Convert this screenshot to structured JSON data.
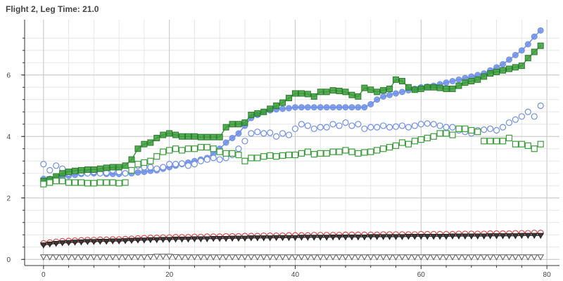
{
  "chart_data": {
    "type": "scatter",
    "title": "Flight 2, Leg Time: 21.0",
    "xlabel": "",
    "ylabel": "",
    "xlim": [
      -3,
      82
    ],
    "ylim": [
      -0.2,
      7.8
    ],
    "xticks": [
      0,
      20,
      40,
      60,
      80
    ],
    "yticks": [
      0,
      2,
      4,
      6
    ],
    "grid": true,
    "legend": "none",
    "series": [
      {
        "marker": "circle-filled",
        "color": "#6e8fe6",
        "line": true,
        "x": [
          0,
          1,
          2,
          3,
          4,
          5,
          6,
          7,
          8,
          9,
          10,
          11,
          12,
          13,
          14,
          15,
          16,
          17,
          18,
          19,
          20,
          21,
          22,
          23,
          24,
          25,
          26,
          27,
          28,
          29,
          30,
          31,
          32,
          33,
          34,
          35,
          36,
          37,
          38,
          39,
          40,
          41,
          42,
          43,
          44,
          45,
          46,
          47,
          48,
          49,
          50,
          51,
          52,
          53,
          54,
          55,
          56,
          57,
          58,
          59,
          60,
          61,
          62,
          63,
          64,
          65,
          66,
          67,
          68,
          69,
          70,
          71,
          72,
          73,
          74,
          75,
          76,
          77,
          78,
          79
        ],
        "values": [
          2.62,
          2.62,
          2.65,
          2.7,
          2.72,
          2.75,
          2.78,
          2.8,
          2.8,
          2.8,
          2.78,
          2.78,
          2.78,
          2.8,
          2.8,
          2.83,
          2.85,
          2.88,
          2.9,
          2.95,
          3.0,
          3.05,
          3.1,
          3.15,
          3.2,
          3.25,
          3.3,
          3.45,
          3.6,
          3.8,
          3.95,
          4.1,
          4.35,
          4.6,
          4.7,
          4.8,
          4.85,
          4.88,
          4.9,
          4.92,
          4.95,
          4.95,
          4.95,
          4.95,
          4.95,
          4.95,
          4.95,
          4.95,
          4.95,
          4.95,
          4.95,
          4.95,
          5.05,
          5.2,
          5.3,
          5.35,
          5.4,
          5.45,
          5.5,
          5.55,
          5.6,
          5.62,
          5.65,
          5.7,
          5.75,
          5.8,
          5.85,
          5.9,
          5.95,
          6.0,
          6.05,
          6.15,
          6.25,
          6.35,
          6.5,
          6.65,
          6.8,
          7.0,
          7.25,
          7.45
        ]
      },
      {
        "marker": "circle-open",
        "color": "#6e8fe6",
        "line": false,
        "x": [
          0,
          1,
          2,
          3,
          4,
          5,
          6,
          7,
          8,
          9,
          10,
          11,
          12,
          13,
          14,
          15,
          16,
          17,
          18,
          19,
          20,
          21,
          22,
          23,
          24,
          25,
          26,
          27,
          28,
          29,
          30,
          31,
          32,
          33,
          34,
          35,
          36,
          37,
          38,
          39,
          40,
          41,
          42,
          43,
          44,
          45,
          46,
          47,
          48,
          49,
          50,
          51,
          52,
          53,
          54,
          55,
          56,
          57,
          58,
          59,
          60,
          61,
          62,
          63,
          64,
          65,
          66,
          67,
          68,
          69,
          70,
          71,
          72,
          73,
          74,
          75,
          76,
          77,
          78,
          79
        ],
        "values": [
          3.1,
          2.9,
          3.05,
          2.95,
          2.8,
          2.85,
          2.82,
          2.8,
          2.85,
          2.8,
          2.82,
          2.9,
          2.85,
          2.8,
          2.9,
          3.05,
          3.0,
          3.0,
          2.95,
          3.0,
          3.1,
          3.1,
          3.12,
          3.05,
          3.1,
          3.2,
          3.25,
          3.3,
          3.25,
          3.3,
          3.4,
          3.6,
          3.85,
          4.1,
          4.15,
          4.1,
          4.12,
          4.0,
          4.1,
          4.05,
          4.25,
          4.4,
          4.35,
          4.25,
          4.3,
          4.3,
          4.4,
          4.35,
          4.45,
          4.35,
          4.4,
          4.25,
          4.3,
          4.3,
          4.35,
          4.3,
          4.32,
          4.35,
          4.3,
          4.35,
          4.4,
          4.42,
          4.4,
          4.35,
          4.3,
          4.3,
          4.2,
          4.15,
          4.1,
          4.2,
          4.22,
          4.25,
          4.2,
          4.3,
          4.45,
          4.55,
          4.65,
          4.8,
          4.65,
          5.0
        ]
      },
      {
        "marker": "square-filled",
        "color": "#3a9e3a",
        "line": true,
        "x": [
          0,
          1,
          2,
          3,
          4,
          5,
          6,
          7,
          8,
          9,
          10,
          11,
          12,
          13,
          14,
          15,
          16,
          17,
          18,
          19,
          20,
          21,
          22,
          23,
          24,
          25,
          26,
          27,
          28,
          29,
          30,
          31,
          32,
          33,
          34,
          35,
          36,
          37,
          38,
          39,
          40,
          41,
          42,
          43,
          44,
          45,
          46,
          47,
          48,
          49,
          50,
          51,
          52,
          53,
          54,
          55,
          56,
          57,
          58,
          59,
          60,
          61,
          62,
          63,
          64,
          65,
          66,
          67,
          68,
          69,
          70,
          71,
          72,
          73,
          74,
          75,
          76,
          77,
          78,
          79
        ],
        "values": [
          2.55,
          2.6,
          2.7,
          2.8,
          2.85,
          2.88,
          2.9,
          2.92,
          2.92,
          2.95,
          2.98,
          3.0,
          3.0,
          3.05,
          3.25,
          3.6,
          3.75,
          3.8,
          3.95,
          4.05,
          4.1,
          4.05,
          4.0,
          4.0,
          4.0,
          3.98,
          3.98,
          3.98,
          3.98,
          4.3,
          4.4,
          4.4,
          4.45,
          4.7,
          4.75,
          4.8,
          4.9,
          5.0,
          5.1,
          5.25,
          5.4,
          5.4,
          5.38,
          5.3,
          5.45,
          5.45,
          5.5,
          5.48,
          5.45,
          5.35,
          5.3,
          5.58,
          5.52,
          5.45,
          5.5,
          5.55,
          5.85,
          5.8,
          5.6,
          5.52,
          5.55,
          5.6,
          5.6,
          5.58,
          5.55,
          5.55,
          5.65,
          5.75,
          5.8,
          5.85,
          5.95,
          6.05,
          6.1,
          6.15,
          6.2,
          6.25,
          6.3,
          6.55,
          6.75,
          6.95
        ]
      },
      {
        "marker": "square-open",
        "color": "#3a9e3a",
        "line": false,
        "x": [
          0,
          1,
          2,
          3,
          4,
          5,
          6,
          7,
          8,
          9,
          10,
          11,
          12,
          13,
          14,
          15,
          16,
          17,
          18,
          19,
          20,
          21,
          22,
          23,
          24,
          25,
          26,
          27,
          28,
          29,
          30,
          31,
          32,
          33,
          34,
          35,
          36,
          37,
          38,
          39,
          40,
          41,
          42,
          43,
          44,
          45,
          46,
          47,
          48,
          49,
          50,
          51,
          52,
          53,
          54,
          55,
          56,
          57,
          58,
          59,
          60,
          61,
          62,
          63,
          64,
          65,
          66,
          67,
          68,
          69,
          70,
          71,
          72,
          73,
          74,
          75,
          76,
          77,
          78,
          79
        ],
        "values": [
          2.45,
          2.5,
          2.55,
          2.55,
          2.5,
          2.5,
          2.5,
          2.48,
          2.48,
          2.5,
          2.5,
          2.5,
          2.48,
          2.5,
          2.9,
          3.1,
          3.15,
          3.2,
          3.35,
          3.5,
          3.55,
          3.6,
          3.55,
          3.6,
          3.6,
          3.65,
          3.65,
          3.6,
          3.5,
          3.45,
          3.45,
          3.4,
          3.2,
          3.3,
          3.3,
          3.35,
          3.38,
          3.35,
          3.38,
          3.4,
          3.4,
          3.45,
          3.5,
          3.42,
          3.45,
          3.45,
          3.5,
          3.5,
          3.55,
          3.5,
          3.45,
          3.48,
          3.5,
          3.55,
          3.6,
          3.65,
          3.7,
          3.8,
          3.75,
          3.85,
          3.9,
          3.95,
          4.0,
          4.1,
          4.1,
          4.05,
          4.25,
          4.25,
          4.2,
          4.15,
          3.85,
          3.85,
          3.85,
          3.85,
          3.95,
          3.75,
          3.75,
          3.7,
          3.6,
          3.75
        ]
      },
      {
        "marker": "circle-open",
        "color": "#d94a4a",
        "line": false,
        "x": [
          0,
          1,
          2,
          3,
          4,
          5,
          6,
          7,
          8,
          9,
          10,
          11,
          12,
          13,
          14,
          15,
          16,
          17,
          18,
          19,
          20,
          21,
          22,
          23,
          24,
          25,
          26,
          27,
          28,
          29,
          30,
          31,
          32,
          33,
          34,
          35,
          36,
          37,
          38,
          39,
          40,
          41,
          42,
          43,
          44,
          45,
          46,
          47,
          48,
          49,
          50,
          51,
          52,
          53,
          54,
          55,
          56,
          57,
          58,
          59,
          60,
          61,
          62,
          63,
          64,
          65,
          66,
          67,
          68,
          69,
          70,
          71,
          72,
          73,
          74,
          75,
          76,
          77,
          78,
          79
        ],
        "values": [
          0.52,
          0.55,
          0.57,
          0.59,
          0.6,
          0.61,
          0.62,
          0.63,
          0.63,
          0.64,
          0.64,
          0.65,
          0.65,
          0.66,
          0.67,
          0.68,
          0.69,
          0.7,
          0.7,
          0.71,
          0.71,
          0.72,
          0.72,
          0.72,
          0.73,
          0.73,
          0.74,
          0.74,
          0.74,
          0.75,
          0.75,
          0.75,
          0.76,
          0.76,
          0.76,
          0.77,
          0.77,
          0.77,
          0.77,
          0.78,
          0.78,
          0.78,
          0.78,
          0.79,
          0.79,
          0.79,
          0.79,
          0.79,
          0.8,
          0.8,
          0.8,
          0.8,
          0.8,
          0.8,
          0.81,
          0.81,
          0.81,
          0.81,
          0.81,
          0.81,
          0.82,
          0.82,
          0.82,
          0.82,
          0.82,
          0.82,
          0.83,
          0.83,
          0.83,
          0.83,
          0.83,
          0.84,
          0.84,
          0.84,
          0.84,
          0.85,
          0.85,
          0.85,
          0.86,
          0.86
        ]
      },
      {
        "marker": "triangle-down-filled",
        "color": "#3a3a3a",
        "line": true,
        "x": [
          0,
          1,
          2,
          3,
          4,
          5,
          6,
          7,
          8,
          9,
          10,
          11,
          12,
          13,
          14,
          15,
          16,
          17,
          18,
          19,
          20,
          21,
          22,
          23,
          24,
          25,
          26,
          27,
          28,
          29,
          30,
          31,
          32,
          33,
          34,
          35,
          36,
          37,
          38,
          39,
          40,
          41,
          42,
          43,
          44,
          45,
          46,
          47,
          48,
          49,
          50,
          51,
          52,
          53,
          54,
          55,
          56,
          57,
          58,
          59,
          60,
          61,
          62,
          63,
          64,
          65,
          66,
          67,
          68,
          69,
          70,
          71,
          72,
          73,
          74,
          75,
          76,
          77,
          78,
          79
        ],
        "values": [
          0.47,
          0.5,
          0.52,
          0.54,
          0.55,
          0.56,
          0.57,
          0.58,
          0.58,
          0.59,
          0.59,
          0.6,
          0.6,
          0.61,
          0.62,
          0.63,
          0.63,
          0.64,
          0.64,
          0.65,
          0.65,
          0.66,
          0.66,
          0.66,
          0.67,
          0.67,
          0.67,
          0.68,
          0.68,
          0.68,
          0.69,
          0.69,
          0.69,
          0.7,
          0.7,
          0.7,
          0.7,
          0.71,
          0.71,
          0.71,
          0.71,
          0.72,
          0.72,
          0.72,
          0.72,
          0.72,
          0.73,
          0.73,
          0.73,
          0.73,
          0.73,
          0.73,
          0.74,
          0.74,
          0.74,
          0.74,
          0.74,
          0.74,
          0.75,
          0.75,
          0.75,
          0.75,
          0.75,
          0.75,
          0.75,
          0.76,
          0.76,
          0.76,
          0.76,
          0.76,
          0.76,
          0.77,
          0.77,
          0.77,
          0.77,
          0.77,
          0.78,
          0.78,
          0.78,
          0.78
        ]
      },
      {
        "marker": "triangle-down-open",
        "color": "#555555",
        "line": false,
        "x": [
          0,
          1,
          2,
          3,
          4,
          5,
          6,
          7,
          8,
          9,
          10,
          11,
          12,
          13,
          14,
          15,
          16,
          17,
          18,
          19,
          20,
          21,
          22,
          23,
          24,
          25,
          26,
          27,
          28,
          29,
          30,
          31,
          32,
          33,
          34,
          35,
          36,
          37,
          38,
          39,
          40,
          41,
          42,
          43,
          44,
          45,
          46,
          47,
          48,
          49,
          50,
          51,
          52,
          53,
          54,
          55,
          56,
          57,
          58,
          59,
          60,
          61,
          62,
          63,
          64,
          65,
          66,
          67,
          68,
          69,
          70,
          71,
          72,
          73,
          74,
          75,
          76,
          77,
          78,
          79
        ],
        "values": [
          0.08,
          0.08,
          0.08,
          0.08,
          0.08,
          0.08,
          0.08,
          0.08,
          0.08,
          0.08,
          0.08,
          0.08,
          0.08,
          0.08,
          0.08,
          0.08,
          0.08,
          0.09,
          0.1,
          0.1,
          0.1,
          0.09,
          0.08,
          0.08,
          0.08,
          0.08,
          0.08,
          0.08,
          0.08,
          0.08,
          0.08,
          0.08,
          0.08,
          0.08,
          0.08,
          0.08,
          0.08,
          0.08,
          0.08,
          0.08,
          0.08,
          0.08,
          0.08,
          0.08,
          0.08,
          0.08,
          0.08,
          0.08,
          0.08,
          0.08,
          0.08,
          0.08,
          0.08,
          0.08,
          0.08,
          0.08,
          0.08,
          0.08,
          0.08,
          0.08,
          0.08,
          0.08,
          0.08,
          0.08,
          0.08,
          0.08,
          0.08,
          0.08,
          0.08,
          0.08,
          0.08,
          0.08,
          0.08,
          0.08,
          0.08,
          0.08,
          0.08,
          0.08,
          0.08,
          0.08
        ]
      }
    ]
  }
}
